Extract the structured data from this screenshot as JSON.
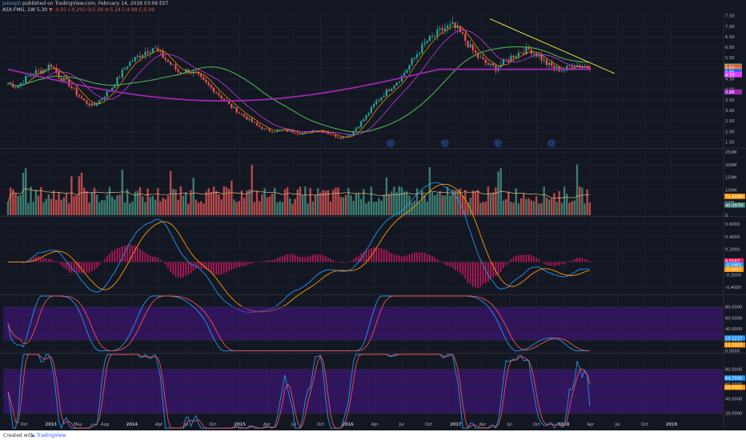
{
  "header": {
    "user": "Jakosph",
    "published": "published on TradingView.com, February 14, 2018 03:06 EST",
    "symbol": "ASX:FMG, 1W",
    "last": "5.30",
    "change": "-0.01 (-0.2%)",
    "open": "O:5.04",
    "high": "H:5.24",
    "low": "L:4.98",
    "close": "C:5.09"
  },
  "footer": {
    "created_with": "Created with",
    "brand": "TradingView"
  },
  "colors": {
    "bg": "#131722",
    "up": "#26a69a",
    "down": "#ef5350",
    "ma_green": "#4caf50",
    "ma_purple": "#9c27b0",
    "ma_orange": "#ff9800",
    "ma_blue": "#2962ff",
    "band": "#4a148c",
    "trend": "#e6e633"
  },
  "chart_data": [
    {
      "type": "candlestick",
      "name": "price",
      "y_ticks": [
        "7.50",
        "7.00",
        "6.50",
        "6.00",
        "5.50",
        "5.00",
        "4.50",
        "4.00",
        "3.50",
        "3.00",
        "2.50",
        "2.00",
        "1.50"
      ],
      "last_labels": [
        "5.10",
        "5.04",
        "4.91",
        "4.85",
        "4.70",
        "3.88"
      ],
      "x_labels": [
        "Oct",
        "2013",
        "May",
        "Aug",
        "2014",
        "Apr",
        "Jul",
        "Oct",
        "2015",
        "Apr",
        "Jul",
        "Oct",
        "2016",
        "Apr",
        "Jul",
        "Oct",
        "2017",
        "Apr",
        "Jul",
        "Oct",
        "2018",
        "Apr",
        "Jul",
        "Oct",
        "2019"
      ],
      "close_path": [
        4.3,
        4.1,
        4.5,
        4.8,
        4.9,
        5.2,
        4.6,
        4.3,
        3.8,
        3.4,
        3.2,
        3.6,
        4.0,
        4.6,
        5.2,
        5.5,
        5.8,
        6.0,
        5.6,
        5.2,
        4.8,
        4.9,
        4.7,
        4.3,
        4.0,
        3.6,
        3.2,
        2.9,
        2.6,
        2.3,
        2.1,
        2.0,
        2.1,
        2.0,
        1.9,
        1.95,
        2.1,
        2.0,
        1.8,
        1.7,
        1.85,
        2.3,
        2.8,
        3.4,
        3.8,
        4.2,
        4.6,
        5.2,
        5.8,
        6.3,
        6.6,
        6.9,
        7.0,
        6.6,
        6.0,
        5.5,
        5.2,
        5.0,
        5.3,
        5.6,
        5.8,
        5.9,
        5.6,
        5.2,
        5.0,
        4.9,
        5.2,
        5.1,
        5.09
      ],
      "markers": [
        "D",
        "D",
        "D",
        "D"
      ]
    },
    {
      "type": "bar",
      "name": "volume",
      "y_ticks": [
        "250M",
        "200M",
        "150M",
        "100M",
        "50M",
        "0"
      ],
      "last_labels": [
        "74.668M",
        "40.097M"
      ]
    },
    {
      "type": "line",
      "name": "macd",
      "y_ticks": [
        "0.6000",
        "0.4000",
        "0.2000",
        "0.0000",
        "-0.2000",
        "-0.4000"
      ],
      "last_labels": [
        "0.0167",
        "-0.0465",
        "-0.0663"
      ]
    },
    {
      "type": "line",
      "name": "stoch_slow",
      "y_ticks": [
        "80.0000",
        "60.0000",
        "40.0000",
        "20.0000",
        "0.0000"
      ],
      "last_labels": [
        "19.1227",
        "15.3053"
      ]
    },
    {
      "type": "line",
      "name": "stoch_fast",
      "y_ticks": [
        "80.0000",
        "60.0000",
        "40.0000",
        "20.0000"
      ],
      "last_labels": [
        "64.7045",
        "58.6381"
      ]
    }
  ]
}
